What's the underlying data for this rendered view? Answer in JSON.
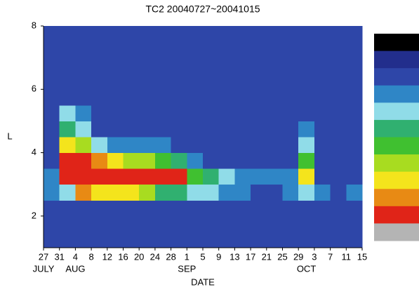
{
  "chart_data": {
    "type": "heatmap",
    "title": "TC2  20040727~20041015",
    "xlabel": "DATE",
    "ylabel": "L",
    "xlim": [
      0,
      80
    ],
    "ylim": [
      1,
      8
    ],
    "xticks": [
      {
        "value": 0,
        "label": "27"
      },
      {
        "value": 4,
        "label": "31"
      },
      {
        "value": 8,
        "label": "4"
      },
      {
        "value": 12,
        "label": "8"
      },
      {
        "value": 16,
        "label": "12"
      },
      {
        "value": 20,
        "label": "16"
      },
      {
        "value": 24,
        "label": "20"
      },
      {
        "value": 28,
        "label": "24"
      },
      {
        "value": 32,
        "label": "28"
      },
      {
        "value": 36,
        "label": "1"
      },
      {
        "value": 40,
        "label": "5"
      },
      {
        "value": 44,
        "label": "9"
      },
      {
        "value": 48,
        "label": "13"
      },
      {
        "value": 52,
        "label": "17"
      },
      {
        "value": 56,
        "label": "21"
      },
      {
        "value": 60,
        "label": "25"
      },
      {
        "value": 64,
        "label": "29"
      },
      {
        "value": 68,
        "label": "3"
      },
      {
        "value": 72,
        "label": "7"
      },
      {
        "value": 76,
        "label": "11"
      },
      {
        "value": 80,
        "label": "15"
      }
    ],
    "month_labels": [
      {
        "value": 0,
        "label": "JULY"
      },
      {
        "value": 8,
        "label": "AUG"
      },
      {
        "value": 36,
        "label": "SEP"
      },
      {
        "value": 66,
        "label": "OCT"
      }
    ],
    "yticks": [
      2,
      4,
      6,
      8
    ],
    "xbins": [
      0,
      4,
      8,
      12,
      16,
      20,
      24,
      28,
      32,
      36,
      40,
      44,
      48,
      52,
      56,
      60,
      64,
      68,
      72,
      76,
      80
    ],
    "ybins": [
      1,
      1.5,
      2,
      2.5,
      3,
      3.5,
      4,
      4.5,
      5,
      5.5,
      6,
      6.5,
      7,
      7.5,
      8
    ],
    "colors": [
      "#000000",
      "#222e8c",
      "#2e46a8",
      "#2f86c6",
      "#90dce8",
      "#30b070",
      "#40c030",
      "#a8dc20",
      "#f4e41c",
      "#e88a14",
      "#e02418",
      "#b4b4b4"
    ],
    "z": [
      [
        2,
        2,
        2,
        2,
        2,
        2,
        2,
        2,
        2,
        2,
        2,
        2,
        2,
        2,
        2,
        2,
        2,
        2,
        2,
        2
      ],
      [
        2,
        2,
        2,
        2,
        2,
        2,
        2,
        2,
        2,
        2,
        2,
        2,
        2,
        2,
        2,
        2,
        2,
        2,
        2,
        2
      ],
      [
        2,
        2,
        2,
        2,
        2,
        2,
        2,
        2,
        2,
        2,
        2,
        2,
        2,
        2,
        2,
        2,
        2,
        2,
        2,
        2
      ],
      [
        3,
        4,
        9,
        8,
        8,
        8,
        7,
        5,
        5,
        4,
        4,
        3,
        3,
        2,
        2,
        3,
        4,
        3,
        2,
        3
      ],
      [
        3,
        10,
        10,
        10,
        10,
        10,
        10,
        10,
        10,
        6,
        5,
        4,
        3,
        3,
        3,
        3,
        8,
        2,
        2,
        2
      ],
      [
        2,
        10,
        10,
        9,
        8,
        7,
        7,
        6,
        5,
        3,
        2,
        2,
        2,
        2,
        2,
        2,
        6,
        2,
        2,
        2
      ],
      [
        2,
        8,
        7,
        4,
        3,
        3,
        3,
        3,
        2,
        2,
        2,
        2,
        2,
        2,
        2,
        2,
        4,
        2,
        2,
        2
      ],
      [
        2,
        5,
        4,
        2,
        2,
        2,
        2,
        2,
        2,
        2,
        2,
        2,
        2,
        2,
        2,
        2,
        3,
        2,
        2,
        2
      ],
      [
        2,
        4,
        3,
        2,
        2,
        2,
        2,
        2,
        2,
        2,
        2,
        2,
        2,
        2,
        2,
        2,
        2,
        2,
        2,
        2
      ],
      [
        2,
        2,
        2,
        2,
        2,
        2,
        2,
        2,
        2,
        2,
        2,
        2,
        2,
        2,
        2,
        2,
        2,
        2,
        2,
        2
      ],
      [
        2,
        2,
        2,
        2,
        2,
        2,
        2,
        2,
        2,
        2,
        2,
        2,
        2,
        2,
        2,
        2,
        2,
        2,
        2,
        2
      ],
      [
        2,
        2,
        2,
        2,
        2,
        2,
        2,
        2,
        2,
        2,
        2,
        2,
        2,
        2,
        2,
        2,
        2,
        2,
        2,
        2
      ],
      [
        2,
        2,
        2,
        2,
        2,
        2,
        2,
        2,
        2,
        2,
        2,
        2,
        2,
        2,
        2,
        2,
        2,
        2,
        2,
        2
      ],
      [
        2,
        2,
        2,
        2,
        2,
        2,
        2,
        2,
        2,
        2,
        2,
        2,
        2,
        2,
        2,
        2,
        2,
        2,
        2,
        2
      ]
    ]
  }
}
